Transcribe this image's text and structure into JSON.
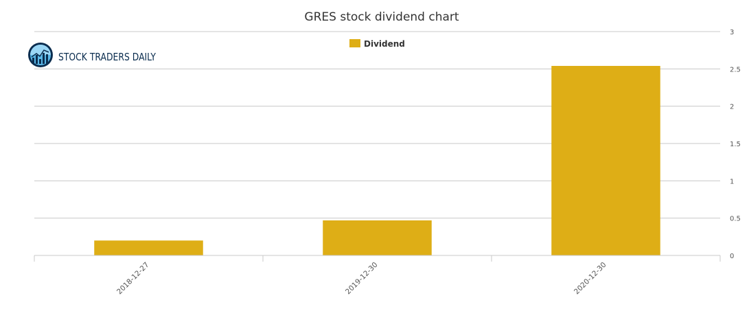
{
  "logo": {
    "text": "STOCK TRADERS DAILY",
    "icon": "bar-chart-globe-icon",
    "text_color": "#0b2d4f"
  },
  "chart_data": {
    "type": "bar",
    "title": "GRES stock dividend chart",
    "categories": [
      "2018-12-27",
      "2019-12-30",
      "2020-12-30"
    ],
    "series": [
      {
        "name": "Dividend",
        "values": [
          0.2,
          0.47,
          2.54
        ],
        "color": "#deae16"
      }
    ],
    "xlabel": "",
    "ylabel": "",
    "ylim": [
      0,
      3
    ],
    "yticks": [
      "0",
      "0.5",
      "1",
      "1.5",
      "2",
      "2.5",
      "3"
    ],
    "y_axis_side": "right",
    "grid": true,
    "legend_position": "top-center"
  }
}
